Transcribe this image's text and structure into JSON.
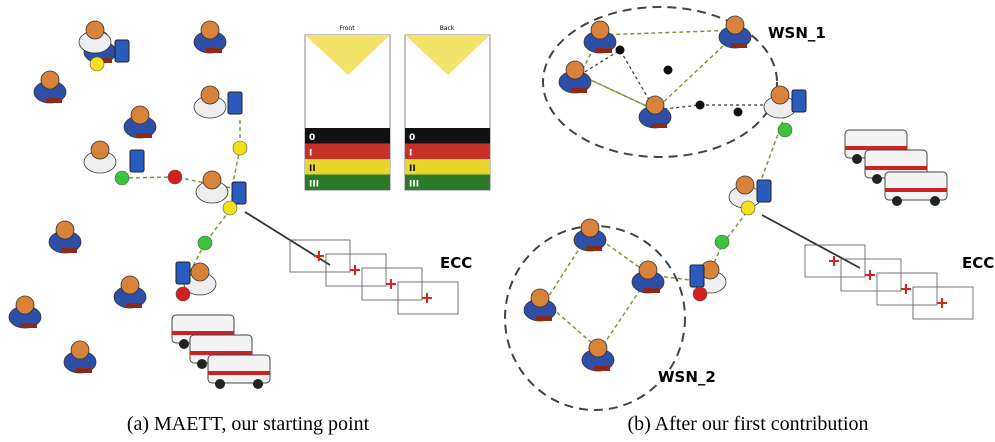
{
  "panels": [
    {
      "caption": "(a) MAETT, our starting point",
      "labels": [
        "ECC"
      ],
      "card": {
        "front": "Front",
        "back": "Back",
        "rows": [
          "0",
          "I",
          "II",
          "III"
        ]
      }
    },
    {
      "caption": "(b) After our first contribution",
      "labels": [
        "WSN_1",
        "WSN_2",
        "ECC"
      ]
    }
  ]
}
